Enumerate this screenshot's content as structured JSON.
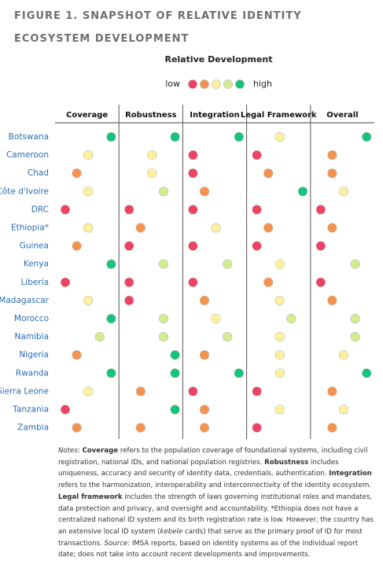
{
  "chart_data": {
    "type": "dot-matrix",
    "title": "FIGURE 1. SNAPSHOT OF RELATIVE IDENTITY ECOSYSTEM DEVELOPMENT",
    "legend_title": "Relative Development",
    "legend_low": "low",
    "legend_high": "high",
    "colors": [
      "#ef4262",
      "#f5924e",
      "#fbf19c",
      "#d2ec90",
      "#14c47c"
    ],
    "categories": [
      "Botswana",
      "Cameroon",
      "Chad",
      "Côte d'Ivoire",
      "DRC",
      "Ethiopia*",
      "Guinea",
      "Kenya",
      "Liberia",
      "Madagascar",
      "Morocco",
      "Namibia",
      "Nigeria",
      "Rwanda",
      "Sierra Leone",
      "Tanzania",
      "Zambia"
    ],
    "series": [
      {
        "name": "Coverage",
        "values": [
          5,
          3,
          2,
          3,
          1,
          3,
          2,
          5,
          1,
          3,
          5,
          4,
          2,
          5,
          3,
          1,
          2
        ]
      },
      {
        "name": "Robustness",
        "values": [
          5,
          3,
          3,
          4,
          1,
          2,
          1,
          4,
          1,
          1,
          4,
          4,
          5,
          5,
          2,
          5,
          2
        ]
      },
      {
        "name": "Integration",
        "values": [
          5,
          1,
          1,
          2,
          1,
          3,
          1,
          4,
          1,
          2,
          3,
          4,
          2,
          5,
          1,
          2,
          2
        ]
      },
      {
        "name": "Legal Framework",
        "values": [
          3,
          1,
          2,
          5,
          1,
          2,
          1,
          3,
          2,
          3,
          4,
          3,
          3,
          3,
          1,
          3,
          1
        ]
      },
      {
        "name": "Overall",
        "values": [
          5,
          2,
          2,
          3,
          1,
          2,
          1,
          4,
          1,
          2,
          4,
          4,
          3,
          5,
          2,
          3,
          2
        ]
      }
    ],
    "notes": [
      {
        "text": "Notes:",
        "italic": true
      },
      {
        "text": " "
      },
      {
        "text": "Coverage",
        "bold": true
      },
      {
        "text": " refers to the population coverage of foundational systems, including civil registration, national IDs, and national population registries. "
      },
      {
        "text": "Robustness",
        "bold": true
      },
      {
        "text": " includes uniqueness, accuracy and security of identity data, credentials, authentication. "
      },
      {
        "text": "Integration",
        "bold": true
      },
      {
        "text": " refers to the harmonization, interoperability and interconnectivity of the identity ecosystem. "
      },
      {
        "text": "Legal framework",
        "bold": true
      },
      {
        "text": "  includes the strength of laws governing institutional roles and mandates, data protection and privacy, and oversight and accountability. *Ethiopia does not have a centralized national ID system and its birth registration rate is low. However, the country has an extensive local ID system ("
      },
      {
        "text": "kebele",
        "italic": true
      },
      {
        "text": " cards) that serve as the primary proof of ID for most transactions. "
      },
      {
        "text": "Source:",
        "italic": true
      },
      {
        "text": " IMSA reports, based on identity systems as of the individual report date; does not take into account recent developments and improvements."
      }
    ]
  }
}
